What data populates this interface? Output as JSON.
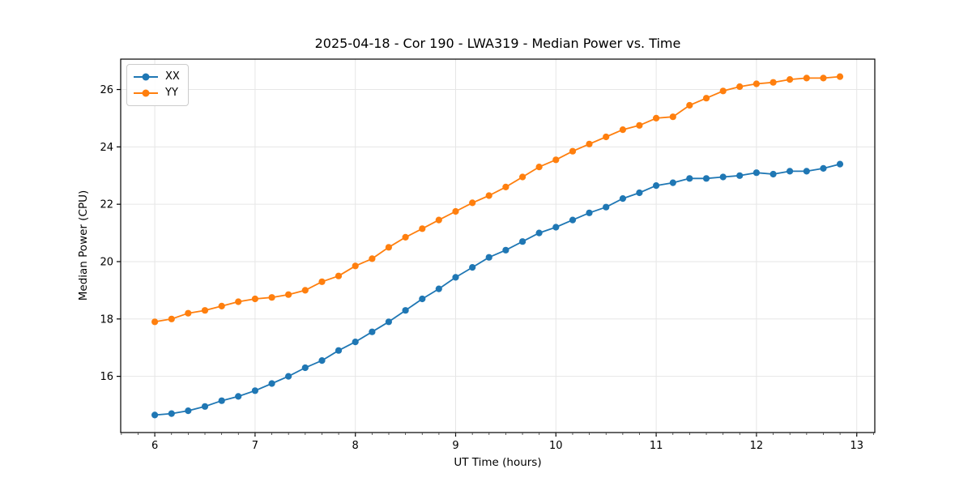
{
  "chart_data": {
    "type": "line",
    "title": "2025-04-18 - Cor 190 - LWA319 - Median Power vs. Time",
    "xlabel": "UT Time (hours)",
    "ylabel": "Median Power (CPU)",
    "xlim": [
      5.66,
      13.18
    ],
    "ylim": [
      14.04,
      27.06
    ],
    "xticks": [
      6,
      7,
      8,
      9,
      10,
      11,
      12,
      13
    ],
    "yticks": [
      16,
      18,
      20,
      22,
      24,
      26
    ],
    "x_minor_tick_step": 0.16667,
    "grid": true,
    "grid_color": "#e6e6e6",
    "legend_position": "upper-left",
    "x": [
      6.0,
      6.167,
      6.333,
      6.5,
      6.667,
      6.833,
      7.0,
      7.167,
      7.333,
      7.5,
      7.667,
      7.833,
      8.0,
      8.167,
      8.333,
      8.5,
      8.667,
      8.833,
      9.0,
      9.167,
      9.333,
      9.5,
      9.667,
      9.833,
      10.0,
      10.167,
      10.333,
      10.5,
      10.667,
      10.833,
      11.0,
      11.167,
      11.333,
      11.5,
      11.667,
      11.833,
      12.0,
      12.167,
      12.333,
      12.5,
      12.667,
      12.833
    ],
    "series": [
      {
        "name": "XX",
        "color": "#1f77b4",
        "values": [
          14.65,
          14.7,
          14.8,
          14.95,
          15.15,
          15.3,
          15.5,
          15.75,
          16.0,
          16.3,
          16.55,
          16.9,
          17.2,
          17.55,
          17.9,
          18.3,
          18.7,
          19.05,
          19.45,
          19.8,
          20.15,
          20.4,
          20.7,
          21.0,
          21.2,
          21.45,
          21.7,
          21.9,
          22.2,
          22.4,
          22.65,
          22.75,
          22.9,
          22.9,
          22.95,
          23.0,
          23.1,
          23.05,
          23.15,
          23.15,
          23.25,
          23.4
        ]
      },
      {
        "name": "YY",
        "color": "#ff7f0e",
        "values": [
          17.9,
          18.0,
          18.2,
          18.3,
          18.45,
          18.6,
          18.7,
          18.75,
          18.85,
          19.0,
          19.3,
          19.5,
          19.85,
          20.1,
          20.5,
          20.85,
          21.15,
          21.45,
          21.75,
          22.05,
          22.3,
          22.6,
          22.95,
          23.3,
          23.55,
          23.85,
          24.1,
          24.35,
          24.6,
          24.75,
          25.0,
          25.05,
          25.45,
          25.7,
          25.95,
          26.1,
          26.2,
          26.25,
          26.35,
          26.4,
          26.4,
          26.45
        ]
      }
    ]
  }
}
